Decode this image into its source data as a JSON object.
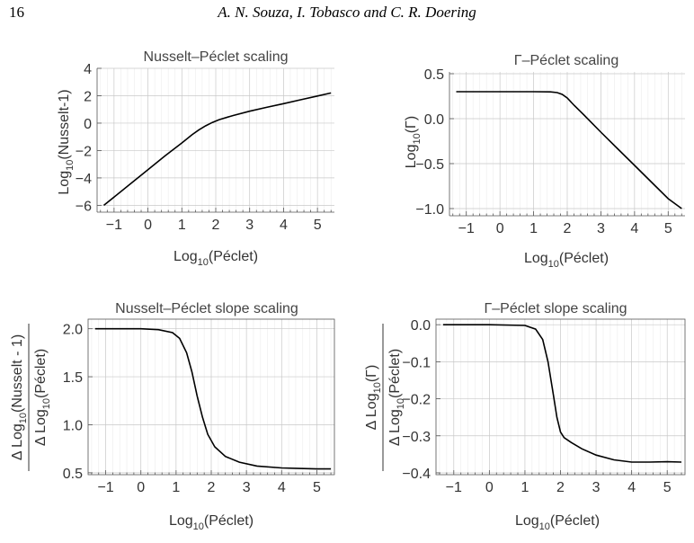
{
  "header": {
    "page_number": "16",
    "running_head": "A. N. Souza, I. Tobasco and C. R. Doering"
  },
  "chart_data": [
    {
      "type": "line",
      "title": "Nusselt–Péclet scaling",
      "xlabel": {
        "base": "Log",
        "sub": "10",
        "rest": "(Péclet)"
      },
      "ylabel": {
        "base": "Log",
        "sub": "10",
        "rest": "(Nusselt-1)"
      },
      "xlim": [
        -1.5,
        5.5
      ],
      "ylim": [
        -6.5,
        4
      ],
      "xticks": [
        -1,
        0,
        1,
        2,
        3,
        4,
        5
      ],
      "xtick_labels": [
        "−1",
        "0",
        "1",
        "2",
        "3",
        "4",
        "5"
      ],
      "yticks": [
        -6,
        -4,
        -2,
        0,
        2,
        4
      ],
      "ytick_labels": [
        "−6",
        "−4",
        "−2",
        "0",
        "2",
        "4"
      ],
      "grid": true,
      "series": [
        {
          "x": [
            -1.3,
            -0.5,
            0,
            0.5,
            1.0,
            1.3,
            1.5,
            1.7,
            1.9,
            2.1,
            2.5,
            3.0,
            3.5,
            4.0,
            4.5,
            5.0,
            5.4
          ],
          "y": [
            -6.0,
            -4.4,
            -3.4,
            -2.4,
            -1.45,
            -0.85,
            -0.5,
            -0.2,
            0.05,
            0.25,
            0.55,
            0.87,
            1.15,
            1.42,
            1.7,
            1.98,
            2.2
          ]
        }
      ]
    },
    {
      "type": "line",
      "title": "Γ–Péclet scaling",
      "xlabel": {
        "base": "Log",
        "sub": "10",
        "rest": "(Péclet)"
      },
      "ylabel": {
        "base": "Log",
        "sub": "10",
        "rest": "(Γ)"
      },
      "xlim": [
        -1.5,
        5.5
      ],
      "ylim": [
        -1.08,
        0.52
      ],
      "xticks": [
        -1,
        0,
        1,
        2,
        3,
        4,
        5
      ],
      "xtick_labels": [
        "−1",
        "0",
        "1",
        "2",
        "3",
        "4",
        "5"
      ],
      "yticks": [
        -1.0,
        -0.5,
        0.0,
        0.5
      ],
      "ytick_labels": [
        "−1.0",
        "−0.5",
        "0.0",
        "0.5"
      ],
      "grid": true,
      "series": [
        {
          "x": [
            -1.3,
            0,
            1.0,
            1.5,
            1.7,
            1.85,
            2.0,
            2.2,
            2.5,
            3.0,
            3.5,
            4.0,
            4.5,
            5.0,
            5.4
          ],
          "y": [
            0.3,
            0.3,
            0.3,
            0.298,
            0.29,
            0.27,
            0.23,
            0.15,
            0.04,
            -0.15,
            -0.335,
            -0.52,
            -0.705,
            -0.89,
            -1.0
          ]
        }
      ]
    },
    {
      "type": "line",
      "title": "Nusselt–Péclet slope scaling",
      "xlabel": {
        "base": "Log",
        "sub": "10",
        "rest": "(Péclet)"
      },
      "ylabel_num": {
        "base": "Δ Log",
        "sub": "10",
        "rest": "(Nusselt - 1)"
      },
      "ylabel_den": {
        "base": "Δ Log",
        "sub": "10",
        "rest": "(Péclet)"
      },
      "xlim": [
        -1.5,
        5.5
      ],
      "ylim": [
        0.48,
        2.1
      ],
      "xticks": [
        -1,
        0,
        1,
        2,
        3,
        4,
        5
      ],
      "xtick_labels": [
        "−1",
        "0",
        "1",
        "2",
        "3",
        "4",
        "5"
      ],
      "yticks": [
        0.5,
        1.0,
        1.5,
        2.0
      ],
      "ytick_labels": [
        "0.5",
        "1.0",
        "1.5",
        "2.0"
      ],
      "grid": true,
      "series": [
        {
          "x": [
            -1.3,
            0,
            0.5,
            0.9,
            1.1,
            1.3,
            1.45,
            1.6,
            1.75,
            1.9,
            2.1,
            2.4,
            2.8,
            3.3,
            4.0,
            4.5,
            5.0,
            5.4
          ],
          "y": [
            2.0,
            2.0,
            1.99,
            1.96,
            1.9,
            1.75,
            1.55,
            1.3,
            1.08,
            0.9,
            0.77,
            0.67,
            0.61,
            0.57,
            0.55,
            0.545,
            0.54,
            0.54
          ]
        }
      ]
    },
    {
      "type": "line",
      "title": "Γ–Péclet slope scaling",
      "xlabel": {
        "base": "Log",
        "sub": "10",
        "rest": "(Péclet)"
      },
      "ylabel_num": {
        "base": "Δ Log",
        "sub": "10",
        "rest": "(Γ)"
      },
      "ylabel_den": {
        "base": "Δ Log",
        "sub": "10",
        "rest": "(Péclet)"
      },
      "xlim": [
        -1.5,
        5.5
      ],
      "ylim": [
        -0.405,
        0.015
      ],
      "xticks": [
        -1,
        0,
        1,
        2,
        3,
        4,
        5
      ],
      "xtick_labels": [
        "−1",
        "0",
        "1",
        "2",
        "3",
        "4",
        "5"
      ],
      "yticks": [
        0.0,
        -0.1,
        -0.2,
        -0.3,
        -0.4
      ],
      "ytick_labels": [
        "0.0",
        "−0.1",
        "−0.2",
        "−0.3",
        "−0.4"
      ],
      "grid": true,
      "series": [
        {
          "x": [
            -1.3,
            0,
            1.0,
            1.3,
            1.5,
            1.65,
            1.8,
            1.9,
            2.0,
            2.1,
            2.3,
            2.6,
            3.0,
            3.5,
            4.0,
            4.5,
            5.0,
            5.4
          ],
          "y": [
            0.0,
            0.0,
            -0.002,
            -0.012,
            -0.04,
            -0.1,
            -0.19,
            -0.25,
            -0.29,
            -0.305,
            -0.318,
            -0.335,
            -0.352,
            -0.365,
            -0.371,
            -0.371,
            -0.37,
            -0.371
          ]
        }
      ]
    }
  ]
}
